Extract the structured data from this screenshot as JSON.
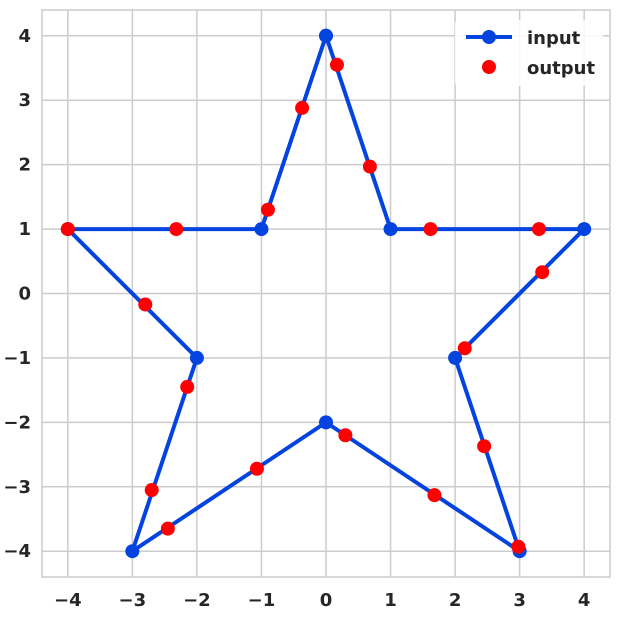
{
  "chart_data": {
    "type": "scatter",
    "title": "",
    "xlabel": "",
    "ylabel": "",
    "xlim": [
      -4.4,
      4.4
    ],
    "ylim": [
      -4.4,
      4.4
    ],
    "xticks": [
      -4,
      -3,
      -2,
      -1,
      0,
      1,
      2,
      3,
      4
    ],
    "yticks": [
      -4,
      -3,
      -2,
      -1,
      0,
      1,
      2,
      3,
      4
    ],
    "xtick_labels": [
      "−4",
      "−3",
      "−2",
      "−1",
      "0",
      "1",
      "2",
      "3",
      "4"
    ],
    "ytick_labels": [
      "−4",
      "−3",
      "−2",
      "−1",
      "0",
      "1",
      "2",
      "3",
      "4"
    ],
    "grid": true,
    "legend_position": "top-right",
    "series": [
      {
        "name": "input",
        "style": "line-marker",
        "color": "#0343df",
        "x": [
          0,
          1,
          4,
          2,
          3,
          0,
          -3,
          -2,
          -4,
          -1,
          0
        ],
        "y": [
          4,
          1,
          1,
          -1,
          -4,
          -2,
          -4,
          -1,
          1,
          1,
          4
        ]
      },
      {
        "name": "output",
        "style": "marker",
        "color": "#ff0000",
        "x": [
          0.17,
          0.68,
          1.62,
          3.3,
          3.35,
          2.15,
          2.45,
          2.98,
          1.68,
          0.3,
          -1.07,
          -2.45,
          -2.7,
          -2.15,
          -2.8,
          -4.0,
          -2.32,
          -0.9,
          -0.37
        ],
        "y": [
          3.55,
          1.97,
          1.0,
          1.0,
          0.33,
          -0.85,
          -2.37,
          -3.93,
          -3.13,
          -2.2,
          -2.72,
          -3.65,
          -3.05,
          -1.45,
          -0.17,
          1.0,
          1.0,
          1.3,
          2.88
        ]
      }
    ]
  }
}
